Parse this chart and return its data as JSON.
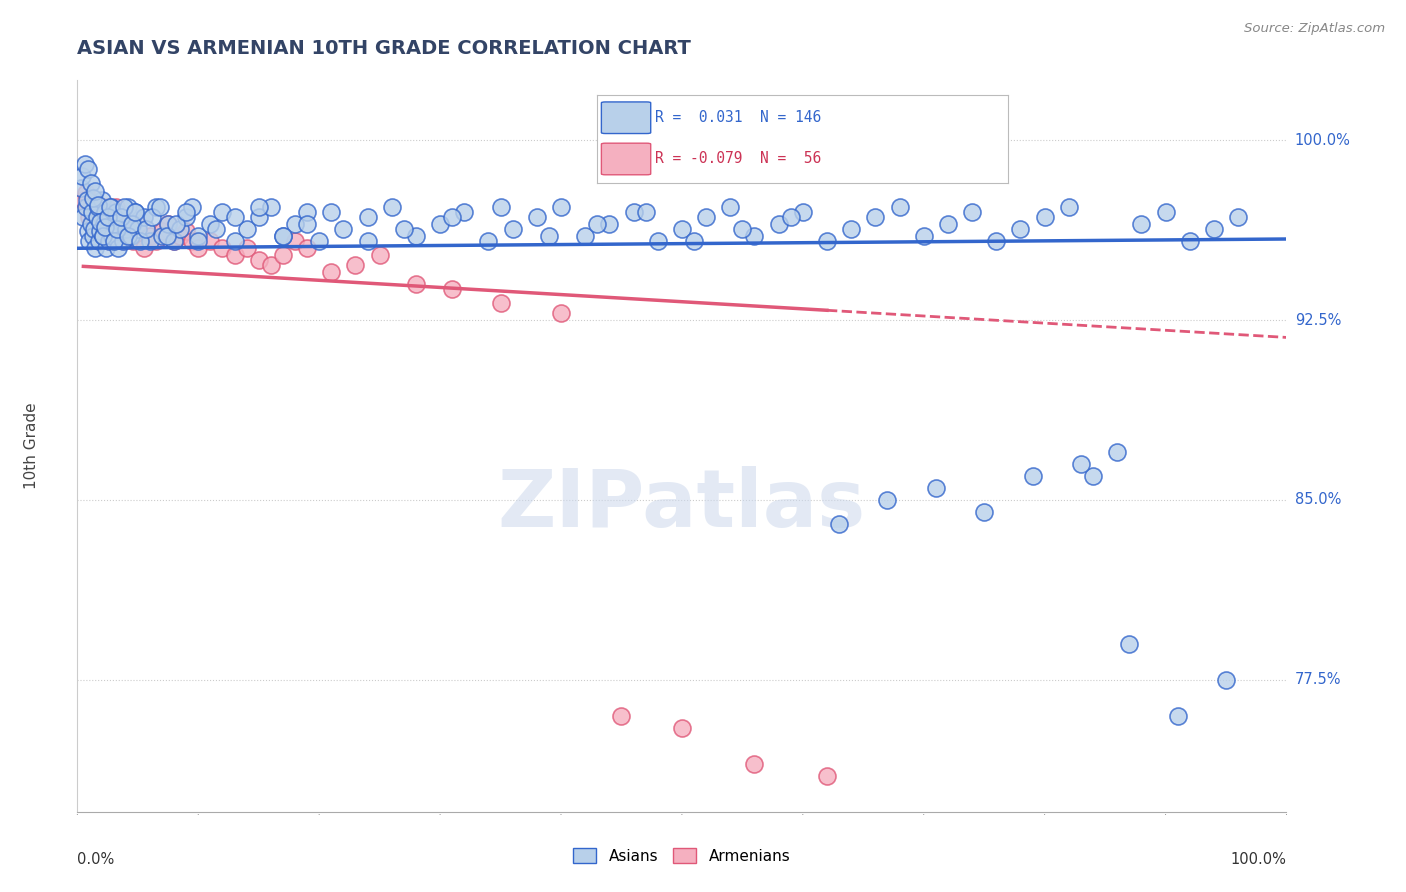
{
  "title": "ASIAN VS ARMENIAN 10TH GRADE CORRELATION CHART",
  "source": "Source: ZipAtlas.com",
  "ylabel": "10th Grade",
  "xlim": [
    0.0,
    1.0
  ],
  "ylim": [
    0.72,
    1.025
  ],
  "yticks": [
    0.775,
    0.85,
    0.925,
    1.0
  ],
  "ytick_labels": [
    "77.5%",
    "85.0%",
    "92.5%",
    "100.0%"
  ],
  "asian_color": "#b8d0ea",
  "armenian_color": "#f5b0c0",
  "asian_line_color": "#3366cc",
  "armenian_line_color": "#e05878",
  "legend_asian_R": "0.031",
  "legend_asian_N": "146",
  "legend_armenian_R": "-0.079",
  "legend_armenian_N": "56",
  "watermark": "ZIPatlas",
  "background_color": "#ffffff",
  "grid_color": "#cccccc",
  "title_color": "#334466",
  "asian_x": [
    0.003,
    0.005,
    0.007,
    0.008,
    0.009,
    0.01,
    0.011,
    0.012,
    0.013,
    0.014,
    0.015,
    0.016,
    0.017,
    0.018,
    0.019,
    0.02,
    0.021,
    0.022,
    0.023,
    0.024,
    0.025,
    0.026,
    0.027,
    0.028,
    0.029,
    0.03,
    0.032,
    0.034,
    0.036,
    0.038,
    0.04,
    0.042,
    0.044,
    0.046,
    0.048,
    0.05,
    0.055,
    0.06,
    0.065,
    0.07,
    0.075,
    0.08,
    0.085,
    0.09,
    0.095,
    0.1,
    0.11,
    0.12,
    0.13,
    0.14,
    0.15,
    0.16,
    0.17,
    0.18,
    0.19,
    0.2,
    0.22,
    0.24,
    0.26,
    0.28,
    0.3,
    0.32,
    0.34,
    0.36,
    0.38,
    0.4,
    0.42,
    0.44,
    0.46,
    0.48,
    0.5,
    0.52,
    0.54,
    0.56,
    0.58,
    0.6,
    0.62,
    0.64,
    0.66,
    0.68,
    0.7,
    0.72,
    0.74,
    0.76,
    0.78,
    0.8,
    0.82,
    0.84,
    0.86,
    0.88,
    0.9,
    0.92,
    0.94,
    0.96,
    0.004,
    0.006,
    0.009,
    0.011,
    0.013,
    0.015,
    0.017,
    0.019,
    0.021,
    0.023,
    0.025,
    0.027,
    0.03,
    0.033,
    0.036,
    0.039,
    0.042,
    0.045,
    0.048,
    0.052,
    0.057,
    0.062,
    0.068,
    0.074,
    0.082,
    0.09,
    0.1,
    0.115,
    0.13,
    0.15,
    0.17,
    0.19,
    0.21,
    0.24,
    0.27,
    0.31,
    0.35,
    0.39,
    0.43,
    0.47,
    0.51,
    0.55,
    0.59,
    0.63,
    0.67,
    0.71,
    0.75,
    0.79,
    0.83,
    0.87,
    0.91,
    0.95
  ],
  "asian_y": [
    0.98,
    0.968,
    0.972,
    0.975,
    0.962,
    0.958,
    0.965,
    0.97,
    0.96,
    0.963,
    0.955,
    0.968,
    0.972,
    0.958,
    0.962,
    0.975,
    0.96,
    0.965,
    0.97,
    0.955,
    0.963,
    0.958,
    0.968,
    0.972,
    0.96,
    0.965,
    0.97,
    0.955,
    0.968,
    0.958,
    0.963,
    0.972,
    0.96,
    0.965,
    0.97,
    0.963,
    0.968,
    0.958,
    0.972,
    0.96,
    0.965,
    0.958,
    0.963,
    0.968,
    0.972,
    0.96,
    0.965,
    0.97,
    0.958,
    0.963,
    0.968,
    0.972,
    0.96,
    0.965,
    0.97,
    0.958,
    0.963,
    0.968,
    0.972,
    0.96,
    0.965,
    0.97,
    0.958,
    0.963,
    0.968,
    0.972,
    0.96,
    0.965,
    0.97,
    0.958,
    0.963,
    0.968,
    0.972,
    0.96,
    0.965,
    0.97,
    0.958,
    0.963,
    0.968,
    0.972,
    0.96,
    0.965,
    0.97,
    0.958,
    0.963,
    0.968,
    0.972,
    0.86,
    0.87,
    0.965,
    0.97,
    0.958,
    0.963,
    0.968,
    0.985,
    0.99,
    0.988,
    0.982,
    0.976,
    0.979,
    0.973,
    0.966,
    0.96,
    0.964,
    0.968,
    0.972,
    0.958,
    0.963,
    0.968,
    0.972,
    0.96,
    0.965,
    0.97,
    0.958,
    0.963,
    0.968,
    0.972,
    0.96,
    0.965,
    0.97,
    0.958,
    0.963,
    0.968,
    0.972,
    0.96,
    0.965,
    0.97,
    0.958,
    0.963,
    0.968,
    0.972,
    0.96,
    0.965,
    0.97,
    0.958,
    0.963,
    0.968,
    0.84,
    0.85,
    0.855,
    0.845,
    0.86,
    0.865,
    0.79,
    0.76,
    0.775
  ],
  "armenian_x": [
    0.005,
    0.008,
    0.01,
    0.012,
    0.014,
    0.016,
    0.018,
    0.02,
    0.022,
    0.024,
    0.026,
    0.028,
    0.03,
    0.032,
    0.035,
    0.038,
    0.04,
    0.043,
    0.046,
    0.05,
    0.055,
    0.06,
    0.065,
    0.07,
    0.075,
    0.08,
    0.085,
    0.09,
    0.095,
    0.1,
    0.11,
    0.12,
    0.13,
    0.14,
    0.15,
    0.16,
    0.17,
    0.18,
    0.19,
    0.21,
    0.23,
    0.25,
    0.28,
    0.31,
    0.35,
    0.4,
    0.45,
    0.5,
    0.56,
    0.62,
    0.007,
    0.011,
    0.013,
    0.015,
    0.017,
    0.019
  ],
  "armenian_y": [
    0.975,
    0.972,
    0.968,
    0.965,
    0.97,
    0.962,
    0.958,
    0.965,
    0.968,
    0.972,
    0.958,
    0.965,
    0.968,
    0.972,
    0.96,
    0.958,
    0.965,
    0.96,
    0.958,
    0.965,
    0.955,
    0.96,
    0.958,
    0.962,
    0.965,
    0.958,
    0.96,
    0.962,
    0.958,
    0.955,
    0.958,
    0.955,
    0.952,
    0.955,
    0.95,
    0.948,
    0.952,
    0.958,
    0.955,
    0.945,
    0.948,
    0.952,
    0.94,
    0.938,
    0.932,
    0.928,
    0.76,
    0.755,
    0.74,
    0.735,
    0.978,
    0.972,
    0.968,
    0.965,
    0.962,
    0.96
  ]
}
